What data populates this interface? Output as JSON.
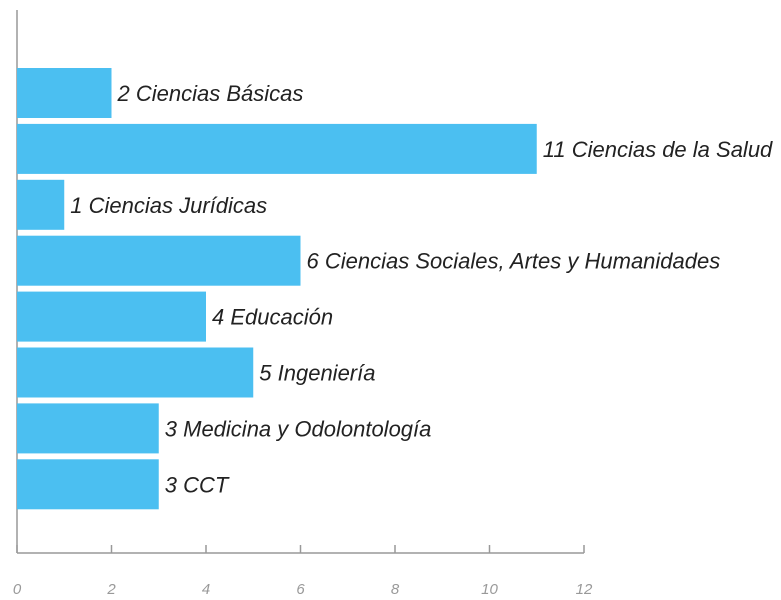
{
  "chart_data": {
    "type": "hbar",
    "categories": [
      "Ciencias Básicas",
      "Ciencias de la Salud",
      "Ciencias Jurídicas",
      "Ciencias Sociales, Artes y Humanidades",
      "Educación",
      "Ingeniería",
      "Medicina y Odolontología",
      "CCT"
    ],
    "values": [
      2,
      11,
      1,
      6,
      4,
      5,
      3,
      3
    ],
    "color": "#4bbff1",
    "xlim": [
      0,
      12
    ],
    "xticks": [
      0,
      2,
      4,
      6,
      8,
      10,
      12
    ]
  }
}
